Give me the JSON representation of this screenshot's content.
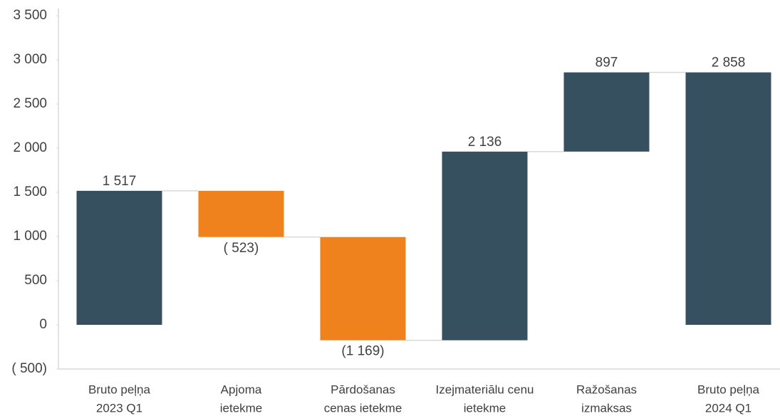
{
  "chart_data": {
    "type": "waterfall",
    "categories": [
      [
        "Bruto peļņa",
        "2023 Q1"
      ],
      [
        "Apjoma",
        "ietekme"
      ],
      [
        "Pārdošanas",
        "cenas ietekme"
      ],
      [
        "Izejmateriālu cenu",
        "ietekme"
      ],
      [
        "Ražošanas",
        "izmaksas"
      ],
      [
        "Bruto peļņa",
        "2024 Q1"
      ]
    ],
    "values": [
      1517,
      -523,
      -1169,
      2136,
      897,
      2858
    ],
    "value_labels": [
      "1 517",
      "( 523)",
      "(1 169)",
      "2 136",
      "897",
      "2 858"
    ],
    "is_total": [
      true,
      false,
      false,
      false,
      false,
      true
    ],
    "colors": [
      "#36505f",
      "#f0821e",
      "#f0821e",
      "#36505f",
      "#36505f",
      "#36505f"
    ],
    "ylim": [
      -500,
      3500
    ],
    "yticks": [
      {
        "value": -500,
        "label": "( 500)"
      },
      0,
      500,
      {
        "value": 1000,
        "label": "1 000"
      },
      {
        "value": 1500,
        "label": "1 500"
      },
      {
        "value": 2000,
        "label": "2 000"
      },
      {
        "value": 2500,
        "label": "2 500"
      },
      {
        "value": 3000,
        "label": "3 000"
      },
      {
        "value": 3500,
        "label": "3 500"
      }
    ],
    "grid": false
  }
}
